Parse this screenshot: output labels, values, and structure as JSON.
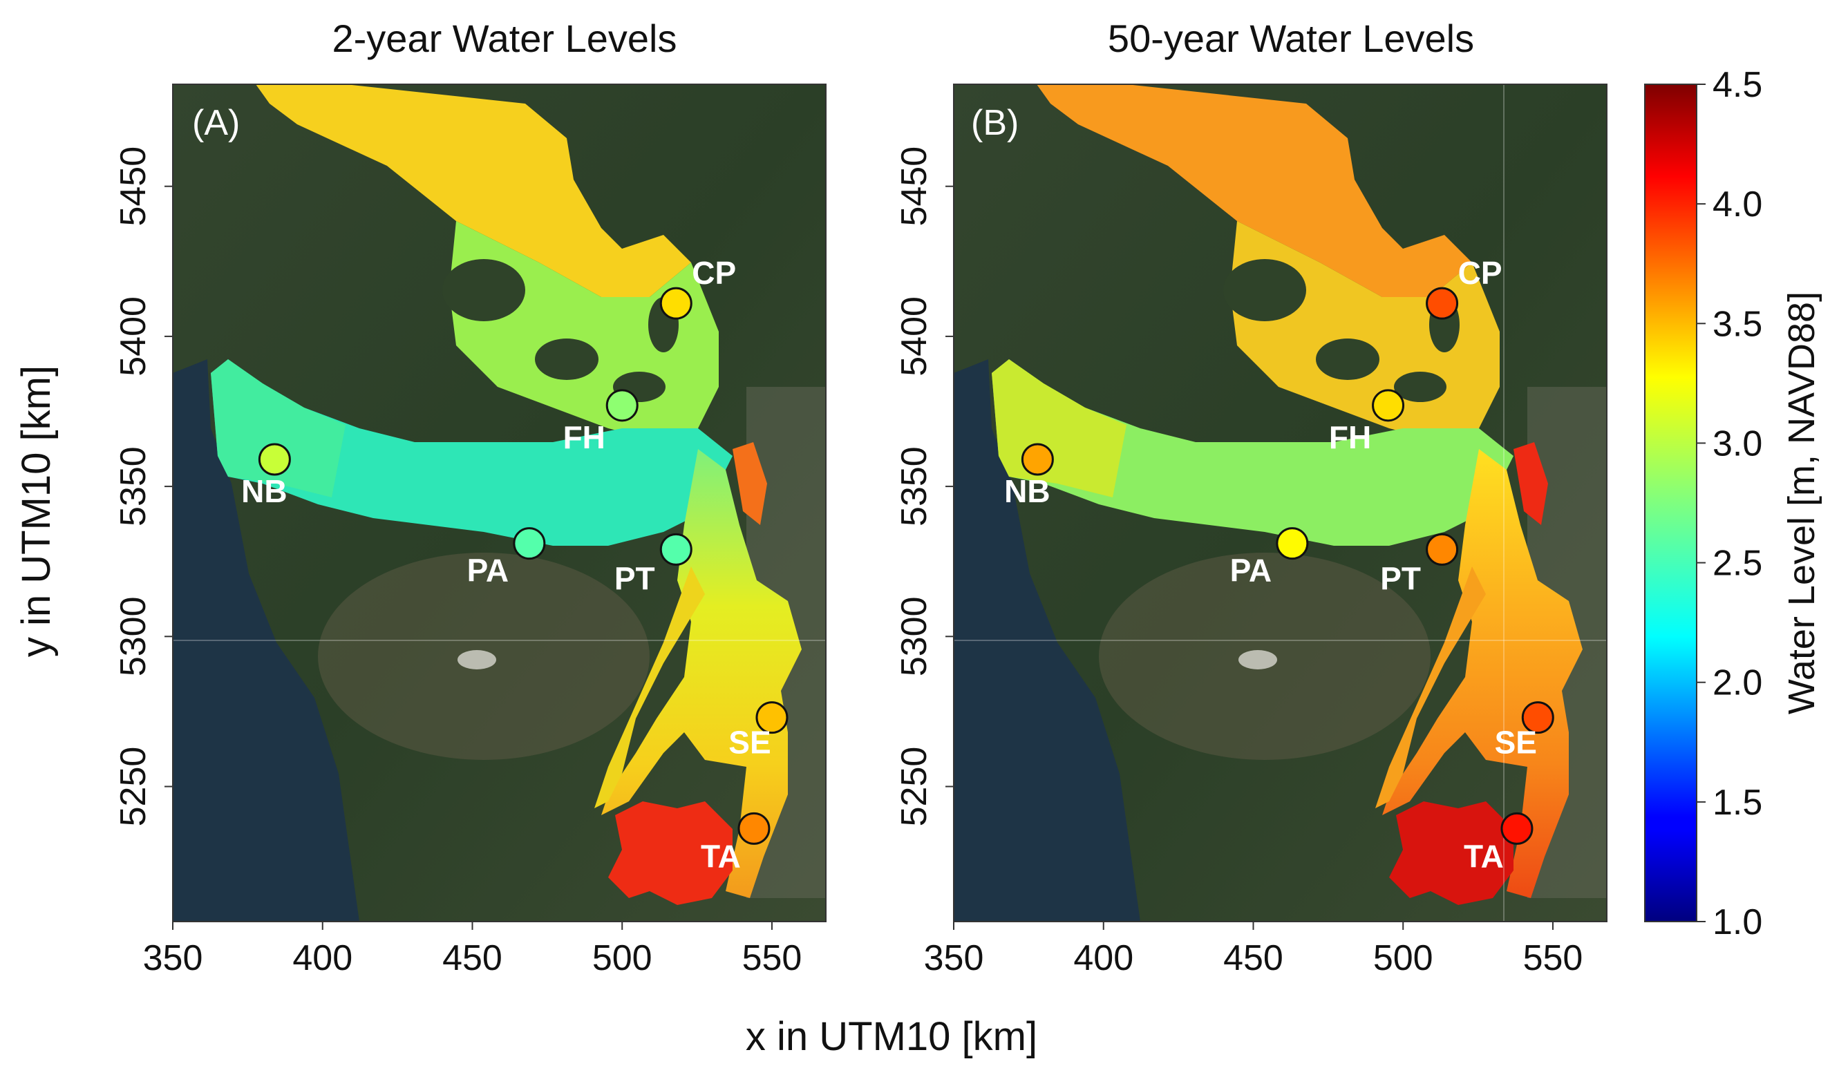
{
  "figure": {
    "x_label": "x in UTM10 [km]",
    "y_label": "y in UTM10 [km]",
    "x_ticks": [
      "350",
      "400",
      "450",
      "500",
      "550"
    ],
    "y_ticks": [
      "5250",
      "5300",
      "5350",
      "5400",
      "5450"
    ]
  },
  "panels": [
    {
      "title": "2-year Water Levels",
      "letter": "(A)",
      "stations": [
        {
          "label": "CP",
          "x": 518,
          "y": 5411,
          "level": 3.3
        },
        {
          "label": "FH",
          "x": 500,
          "y": 5377,
          "level": 2.8
        },
        {
          "label": "NB",
          "x": 384,
          "y": 5359,
          "level": 3.0
        },
        {
          "label": "PA",
          "x": 469,
          "y": 5331,
          "level": 2.6
        },
        {
          "label": "PT",
          "x": 518,
          "y": 5329,
          "level": 2.6
        },
        {
          "label": "SE",
          "x": 550,
          "y": 5273,
          "level": 3.4
        },
        {
          "label": "TA",
          "x": 544,
          "y": 5236,
          "level": 3.6
        }
      ]
    },
    {
      "title": "50-year Water Levels",
      "letter": "(B)",
      "stations": [
        {
          "label": "CP",
          "x": 513,
          "y": 5411,
          "level": 3.8
        },
        {
          "label": "FH",
          "x": 495,
          "y": 5377,
          "level": 3.3
        },
        {
          "label": "NB",
          "x": 378,
          "y": 5359,
          "level": 3.5
        },
        {
          "label": "PA",
          "x": 463,
          "y": 5331,
          "level": 3.2
        },
        {
          "label": "PT",
          "x": 513,
          "y": 5329,
          "level": 3.6
        },
        {
          "label": "SE",
          "x": 545,
          "y": 5273,
          "level": 3.8
        },
        {
          "label": "TA",
          "x": 538,
          "y": 5236,
          "level": 4.0
        }
      ]
    }
  ],
  "colorbar": {
    "label": "Water Level [m, NAVD88]",
    "min": 1.0,
    "max": 4.5,
    "ticks": [
      "1.0",
      "1.5",
      "2.0",
      "2.5",
      "3.0",
      "3.5",
      "4.0",
      "4.5"
    ]
  },
  "chart_data": {
    "type": "map",
    "x_range_km": [
      350,
      568
    ],
    "y_range_km": [
      5205,
      5484
    ],
    "colormap": "jet",
    "value_range": [
      1.0,
      4.5
    ]
  }
}
